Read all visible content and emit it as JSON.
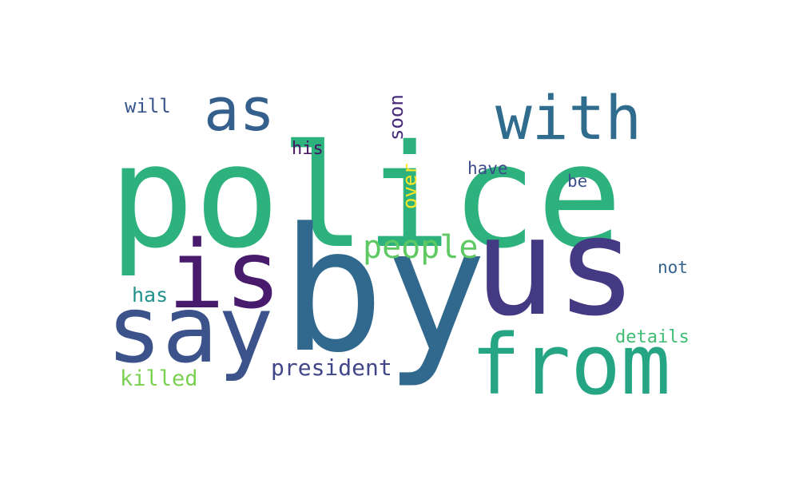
{
  "words": [
    {
      "text": "police",
      "color": "#2db27d",
      "rotated": false
    },
    {
      "text": "by",
      "color": "#31688e",
      "rotated": false
    },
    {
      "text": "us",
      "color": "#443983",
      "rotated": false
    },
    {
      "text": "say",
      "color": "#3b528b",
      "rotated": false
    },
    {
      "text": "from",
      "color": "#25a584",
      "rotated": false
    },
    {
      "text": "is",
      "color": "#481b6d",
      "rotated": false
    },
    {
      "text": "with",
      "color": "#2f6c8e",
      "rotated": false
    },
    {
      "text": "as",
      "color": "#355f8d",
      "rotated": false
    },
    {
      "text": "people",
      "color": "#5ec962",
      "rotated": false
    },
    {
      "text": "president",
      "color": "#404688",
      "rotated": false
    },
    {
      "text": "killed",
      "color": "#7ad151",
      "rotated": false
    },
    {
      "text": "has",
      "color": "#21918c",
      "rotated": false
    },
    {
      "text": "details",
      "color": "#3fbc73",
      "rotated": false
    },
    {
      "text": "will",
      "color": "#39568c",
      "rotated": false
    },
    {
      "text": "soon",
      "color": "#472d7b",
      "rotated": true
    },
    {
      "text": "his",
      "color": "#471365",
      "rotated": false
    },
    {
      "text": "over",
      "color": "#fde725",
      "rotated": true
    },
    {
      "text": "have",
      "color": "#3e4a89",
      "rotated": false
    },
    {
      "text": "be",
      "color": "#3b528b",
      "rotated": false
    },
    {
      "text": "not",
      "color": "#33638d",
      "rotated": false
    }
  ]
}
